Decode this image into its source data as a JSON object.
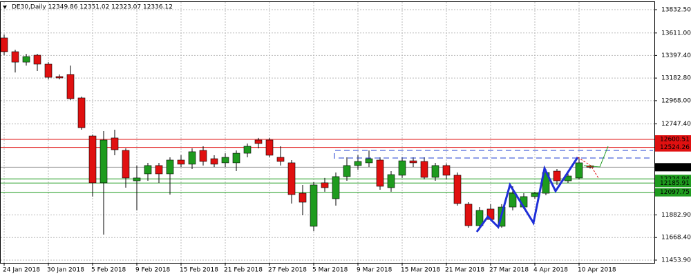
{
  "chart_data": {
    "type": "candlestick",
    "title": "DE30,Daily  12349.86 12351.02 12323.07 12336.12",
    "categories": [
      "24 Jan 2018",
      null,
      null,
      null,
      "30 Jan 2018",
      null,
      null,
      null,
      "5 Feb 2018",
      null,
      null,
      null,
      "9 Feb 2018",
      null,
      null,
      null,
      "15 Feb 2018",
      null,
      null,
      null,
      "21 Feb 2018",
      null,
      null,
      null,
      "27 Feb 2018",
      null,
      null,
      null,
      "5 Mar 2018",
      null,
      null,
      null,
      "9 Mar 2018",
      null,
      null,
      null,
      "15 Mar 2018",
      null,
      null,
      null,
      "21 Mar 2018",
      null,
      null,
      null,
      "27 Mar 2018",
      null,
      null,
      null,
      "4 Apr 2018",
      null,
      null,
      null,
      "10 Apr 2018",
      null
    ],
    "open": [
      13564,
      13433,
      13334,
      13400,
      13315,
      13197,
      13217,
      12994,
      12633,
      12188,
      12614,
      12496,
      12207,
      12273,
      12352,
      12273,
      12404,
      12365,
      12496,
      12417,
      12378,
      12378,
      12469,
      12594,
      12594,
      12430,
      12378,
      12089,
      11775,
      12188,
      12037,
      12247,
      12352,
      12378,
      12404,
      12142,
      12260,
      12397,
      12391,
      12240,
      12352,
      12260,
      11985,
      11781,
      11939,
      11775,
      11958,
      11958,
      12057,
      12089,
      12299,
      12207,
      12234,
      12349.86
    ],
    "high": [
      13597,
      13452,
      13413,
      13413,
      13334,
      13217,
      13302,
      13007,
      12646,
      12679,
      12692,
      12515,
      12352,
      12378,
      12378,
      12430,
      12450,
      12515,
      12535,
      12450,
      12469,
      12496,
      12561,
      12614,
      12614,
      12535,
      12404,
      12168,
      12194,
      12234,
      12286,
      12430,
      12450,
      12496,
      12430,
      12299,
      12430,
      12430,
      12430,
      12378,
      12371,
      12286,
      12004,
      11958,
      11985,
      11985,
      12155,
      12089,
      12103,
      12319,
      12319,
      12286,
      12430,
      12351.02
    ],
    "low": [
      13400,
      13236,
      13302,
      13249,
      13171,
      13171,
      12974,
      12692,
      12057,
      11696,
      12450,
      12142,
      11926,
      12207,
      12188,
      12076,
      12338,
      12319,
      12352,
      12338,
      12338,
      12299,
      12430,
      12515,
      12430,
      12352,
      11991,
      11880,
      11729,
      12103,
      11971,
      12207,
      12312,
      12338,
      12122,
      12103,
      12234,
      12338,
      12220,
      12207,
      12220,
      11971,
      11762,
      11742,
      11827,
      11762,
      11926,
      11939,
      12037,
      12070,
      12168,
      12188,
      12220,
      12323.07
    ],
    "close": [
      13433,
      13334,
      13387,
      13315,
      13190,
      13184,
      12987,
      12712,
      12188,
      12594,
      12502,
      12234,
      12234,
      12352,
      12273,
      12404,
      12365,
      12483,
      12391,
      12365,
      12430,
      12469,
      12535,
      12561,
      12450,
      12391,
      12076,
      12004,
      12168,
      12142,
      12247,
      12352,
      12391,
      12417,
      12155,
      12266,
      12397,
      12378,
      12240,
      12352,
      12260,
      11991,
      11781,
      11926,
      11840,
      11958,
      12089,
      12057,
      12089,
      12286,
      12207,
      12253,
      12378,
      12336.12
    ],
    "up_color": "#1e9b1e",
    "down_color": "#e01010",
    "ylim": [
      11407.8,
      13898.0
    ],
    "yticks": [
      {
        "value": 13832.5,
        "label": "13832.50"
      },
      {
        "value": 13611,
        "label": "13611.00"
      },
      {
        "value": 13397.4,
        "label": "13397.40"
      },
      {
        "value": 13182.8,
        "label": "13182.80"
      },
      {
        "value": 12968,
        "label": "12968.00"
      },
      {
        "value": 12747.4,
        "label": "12747.40"
      },
      {
        "value": 11882.9,
        "label": "11882.90"
      },
      {
        "value": 11668.4,
        "label": "11668.40"
      },
      {
        "value": 11453.9,
        "label": "11453.90"
      }
    ],
    "grid": true,
    "levels": [
      {
        "value": 12600.51,
        "color": "#e01010"
      },
      {
        "value": 12524.26,
        "color": "#e01010"
      },
      {
        "value": 12224.94,
        "color": "#1e9b1e"
      },
      {
        "value": 12185.91,
        "color": "#1e9b1e"
      },
      {
        "value": 12097.75,
        "color": "#1e9b1e"
      },
      {
        "value": 12336.12,
        "color": "#000000"
      }
    ]
  }
}
